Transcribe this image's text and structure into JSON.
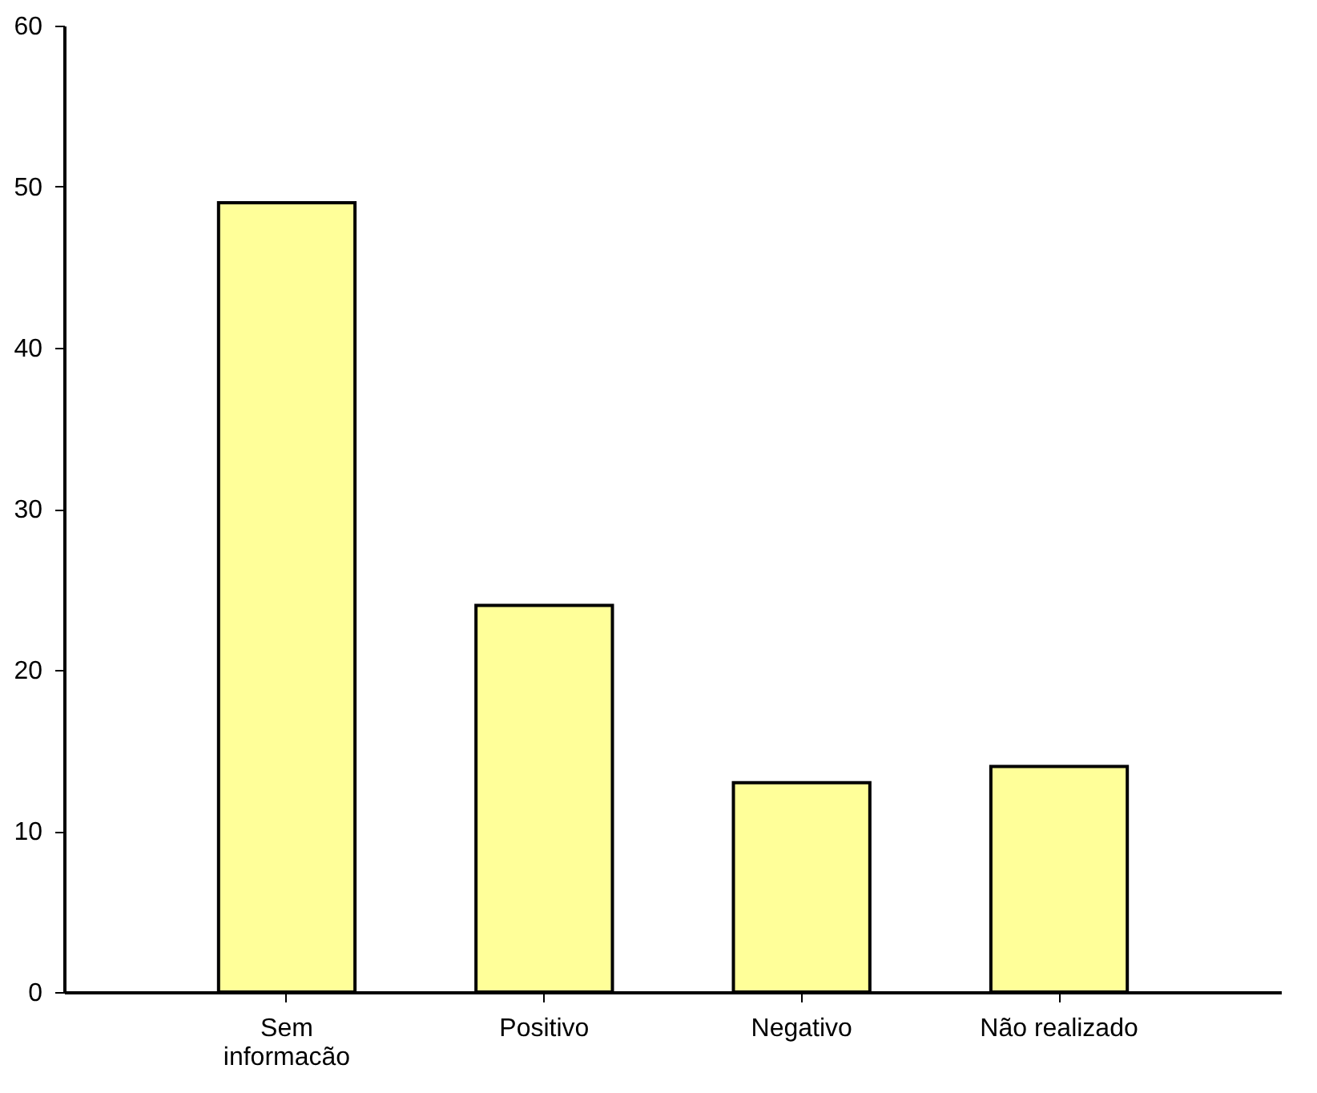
{
  "chart_data": {
    "type": "bar",
    "categories": [
      "Sem\ninformacão",
      "Positivo",
      "Negativo",
      "Não realizado"
    ],
    "values": [
      49,
      24,
      13,
      14
    ],
    "color": "#ffff99",
    "ylim": [
      0,
      60
    ],
    "yticks": [
      0,
      10,
      20,
      30,
      40,
      50,
      60
    ],
    "grid": false
  }
}
